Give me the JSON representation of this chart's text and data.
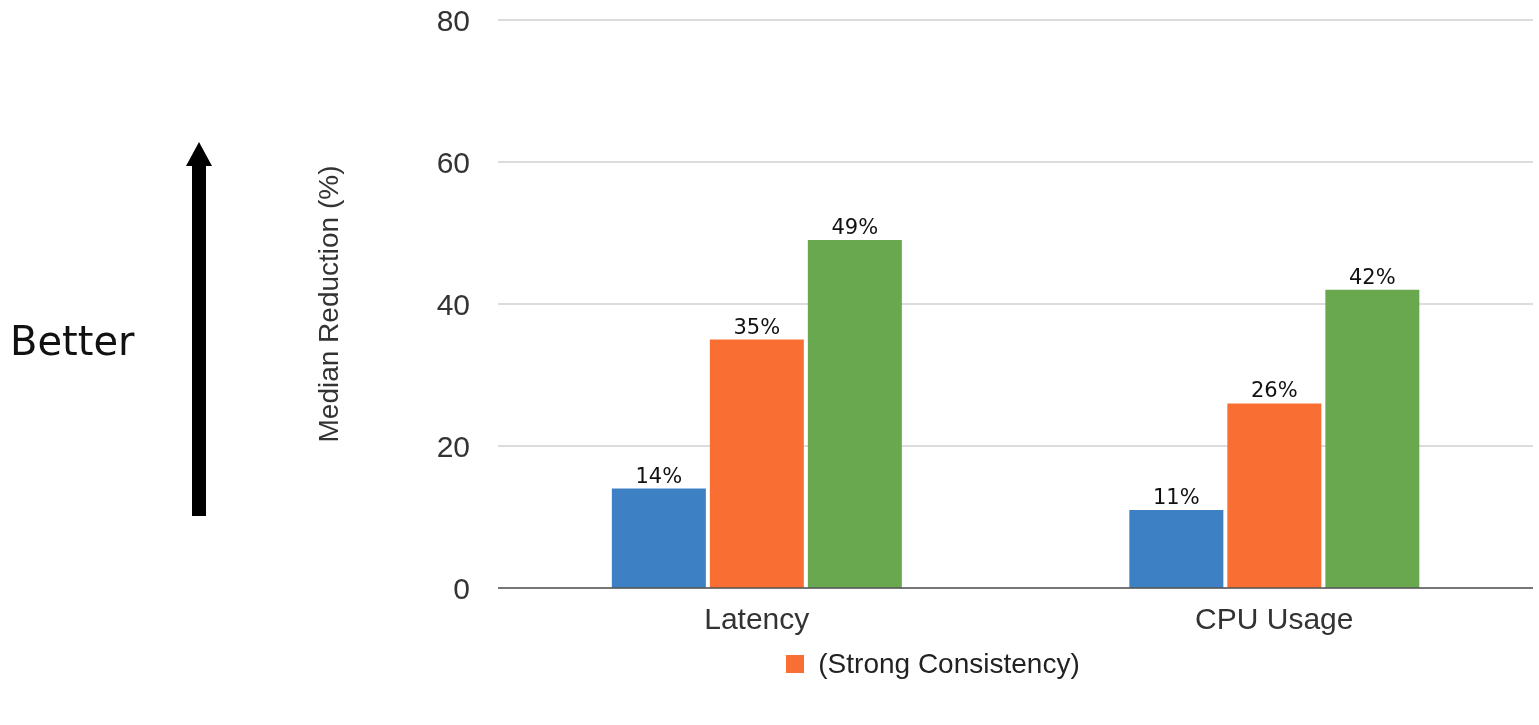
{
  "chart_data": {
    "type": "bar",
    "ylabel": "Median Reduction (%)",
    "categories": [
      "Latency",
      "CPU Usage"
    ],
    "series": [
      {
        "color": "#3d80c4",
        "values": [
          14,
          11
        ],
        "value_labels": [
          "14%",
          "11%"
        ]
      },
      {
        "name": "(Strong Consistency)",
        "color": "#f96f33",
        "values": [
          35,
          26
        ],
        "value_labels": [
          "35%",
          "26%"
        ]
      },
      {
        "color": "#6aa84f",
        "values": [
          49,
          42
        ],
        "value_labels": [
          "49%",
          "42%"
        ]
      }
    ],
    "ylim": [
      0,
      80
    ],
    "yticks": [
      0,
      20,
      40,
      60,
      80
    ],
    "grid": "y",
    "legend": "bottom",
    "annotations": [
      "Better"
    ]
  }
}
